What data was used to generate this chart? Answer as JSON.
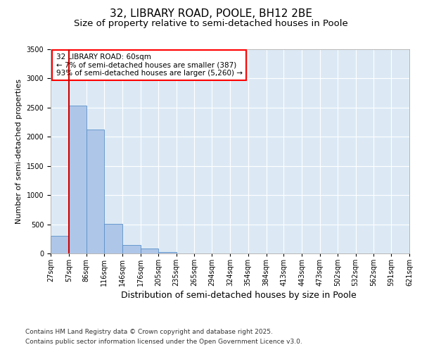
{
  "title": "32, LIBRARY ROAD, POOLE, BH12 2BE",
  "subtitle": "Size of property relative to semi-detached houses in Poole",
  "xlabel": "Distribution of semi-detached houses by size in Poole",
  "ylabel": "Number of semi-detached properties",
  "annotation_title": "32 LIBRARY ROAD: 60sqm",
  "annotation_line1": "← 7% of semi-detached houses are smaller (387)",
  "annotation_line2": "93% of semi-detached houses are larger (5,260) →",
  "bin_edges": [
    27,
    57,
    86,
    116,
    146,
    176,
    205,
    235,
    265,
    294,
    324,
    354,
    384,
    413,
    443,
    473,
    502,
    532,
    562,
    591,
    621
  ],
  "bar_values": [
    300,
    2540,
    2120,
    510,
    150,
    80,
    25,
    5,
    2,
    1,
    1,
    0,
    0,
    0,
    0,
    0,
    0,
    0,
    0,
    0
  ],
  "bar_color": "#aec6e8",
  "bar_edge_color": "#5a90c8",
  "vline_color": "#cc0000",
  "vline_x": 57,
  "background_color": "#dce9f5",
  "footer_line1": "Contains HM Land Registry data © Crown copyright and database right 2025.",
  "footer_line2": "Contains public sector information licensed under the Open Government Licence v3.0.",
  "ylim": [
    0,
    3500
  ],
  "yticks": [
    0,
    500,
    1000,
    1500,
    2000,
    2500,
    3000,
    3500
  ],
  "title_fontsize": 11,
  "subtitle_fontsize": 9.5,
  "xlabel_fontsize": 9,
  "ylabel_fontsize": 8,
  "tick_fontsize": 7,
  "annotation_fontsize": 7.5,
  "footer_fontsize": 6.5
}
